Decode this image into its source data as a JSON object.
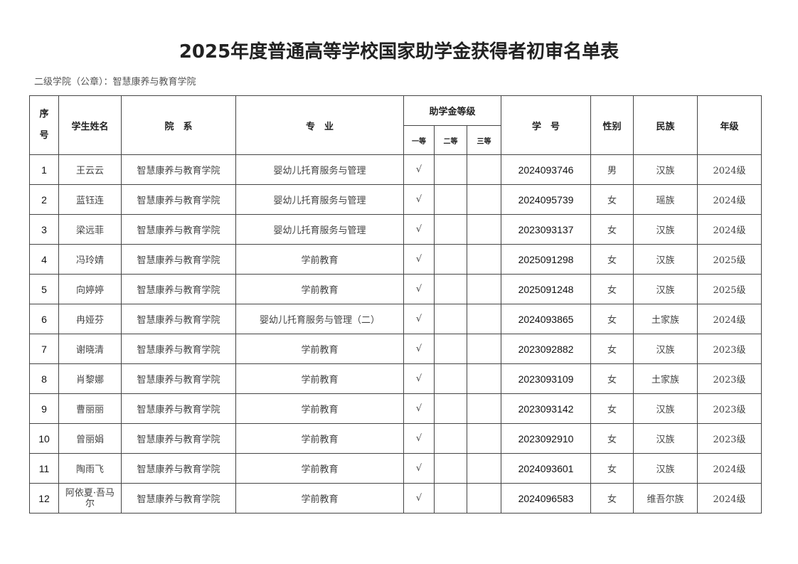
{
  "title": "2025年度普通高等学校国家助学金获得者初审名单表",
  "subtitle": "二级学院（公章）：智慧康养与教育学院",
  "headers": {
    "seq": "序号",
    "name": "学生姓名",
    "dept": "院　系",
    "major": "专　业",
    "level": "助学金等级",
    "first": "一等",
    "second": "二等",
    "third": "三等",
    "id": "学　号",
    "gender": "性别",
    "ethnicity": "民族",
    "grade": "年级"
  },
  "rows": [
    {
      "seq": "1",
      "name": "王云云",
      "dept": "智慧康养与教育学院",
      "major": "婴幼儿托育服务与管理",
      "first": "√",
      "second": "",
      "third": "",
      "id": "2024093746",
      "gender": "男",
      "ethnicity": "汉族",
      "grade": "2024级"
    },
    {
      "seq": "2",
      "name": "蓝钰连",
      "dept": "智慧康养与教育学院",
      "major": "婴幼儿托育服务与管理",
      "first": "√",
      "second": "",
      "third": "",
      "id": "2024095739",
      "gender": "女",
      "ethnicity": "瑶族",
      "grade": "2024级"
    },
    {
      "seq": "3",
      "name": "梁远菲",
      "dept": "智慧康养与教育学院",
      "major": "婴幼儿托育服务与管理",
      "first": "√",
      "second": "",
      "third": "",
      "id": "2023093137",
      "gender": "女",
      "ethnicity": "汉族",
      "grade": "2024级"
    },
    {
      "seq": "4",
      "name": "冯玲婧",
      "dept": "智慧康养与教育学院",
      "major": "学前教育",
      "first": "√",
      "second": "",
      "third": "",
      "id": "2025091298",
      "gender": "女",
      "ethnicity": "汉族",
      "grade": "2025级"
    },
    {
      "seq": "5",
      "name": "向婷婷",
      "dept": "智慧康养与教育学院",
      "major": "学前教育",
      "first": "√",
      "second": "",
      "third": "",
      "id": "2025091248",
      "gender": "女",
      "ethnicity": "汉族",
      "grade": "2025级"
    },
    {
      "seq": "6",
      "name": "冉娅芬",
      "dept": "智慧康养与教育学院",
      "major": "婴幼儿托育服务与管理（二）",
      "first": "√",
      "second": "",
      "third": "",
      "id": "2024093865",
      "gender": "女",
      "ethnicity": "土家族",
      "grade": "2024级"
    },
    {
      "seq": "7",
      "name": "谢晓清",
      "dept": "智慧康养与教育学院",
      "major": "学前教育",
      "first": "√",
      "second": "",
      "third": "",
      "id": "2023092882",
      "gender": "女",
      "ethnicity": "汉族",
      "grade": "2023级"
    },
    {
      "seq": "8",
      "name": "肖黎娜",
      "dept": "智慧康养与教育学院",
      "major": "学前教育",
      "first": "√",
      "second": "",
      "third": "",
      "id": "2023093109",
      "gender": "女",
      "ethnicity": "土家族",
      "grade": "2023级"
    },
    {
      "seq": "9",
      "name": "曹丽丽",
      "dept": "智慧康养与教育学院",
      "major": "学前教育",
      "first": "√",
      "second": "",
      "third": "",
      "id": "2023093142",
      "gender": "女",
      "ethnicity": "汉族",
      "grade": "2023级"
    },
    {
      "seq": "10",
      "name": "曾丽娟",
      "dept": "智慧康养与教育学院",
      "major": "学前教育",
      "first": "√",
      "second": "",
      "third": "",
      "id": "2023092910",
      "gender": "女",
      "ethnicity": "汉族",
      "grade": "2023级"
    },
    {
      "seq": "11",
      "name": "陶雨飞",
      "dept": "智慧康养与教育学院",
      "major": "学前教育",
      "first": "√",
      "second": "",
      "third": "",
      "id": "2024093601",
      "gender": "女",
      "ethnicity": "汉族",
      "grade": "2024级"
    },
    {
      "seq": "12",
      "name": "阿依夏·吾马尔",
      "dept": "智慧康养与教育学院",
      "major": "学前教育",
      "first": "√",
      "second": "",
      "third": "",
      "id": "2024096583",
      "gender": "女",
      "ethnicity": "维吾尔族",
      "grade": "2024级"
    }
  ]
}
